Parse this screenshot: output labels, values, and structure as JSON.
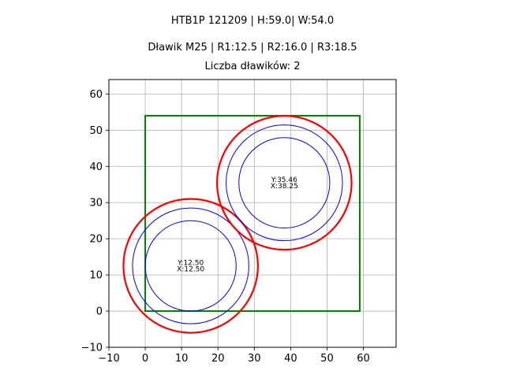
{
  "chart_data": {
    "type": "scatter",
    "title_lines": [
      "HTB1P 121209 | H:59.0| W:54.0",
      "Dławik M25 | R1:12.5 | R2:16.0 | R3:18.5",
      "Liczba dławików: 2"
    ],
    "xlim": [
      -10,
      69.0
    ],
    "ylim": [
      -10,
      64
    ],
    "xticks": [
      -10,
      0,
      10,
      20,
      30,
      40,
      50,
      60
    ],
    "yticks": [
      -10,
      0,
      10,
      20,
      30,
      40,
      50,
      60
    ],
    "grid": true,
    "rectangle": {
      "x": 0,
      "y": 0,
      "width": 59.0,
      "height": 54.0,
      "color": "#008000"
    },
    "radii": {
      "R1": 12.5,
      "R2": 16.0,
      "R3": 18.5
    },
    "colors": {
      "inner": "#0000ff",
      "outer": "#ff0000",
      "grid": "#b0b0b0"
    },
    "glands": [
      {
        "x": 12.5,
        "y": 12.5,
        "label_y": "Y:12.50",
        "label_x": "X:12.50"
      },
      {
        "x": 38.25,
        "y": 35.46,
        "label_y": "Y:35.46",
        "label_x": "X:38.25"
      }
    ]
  }
}
